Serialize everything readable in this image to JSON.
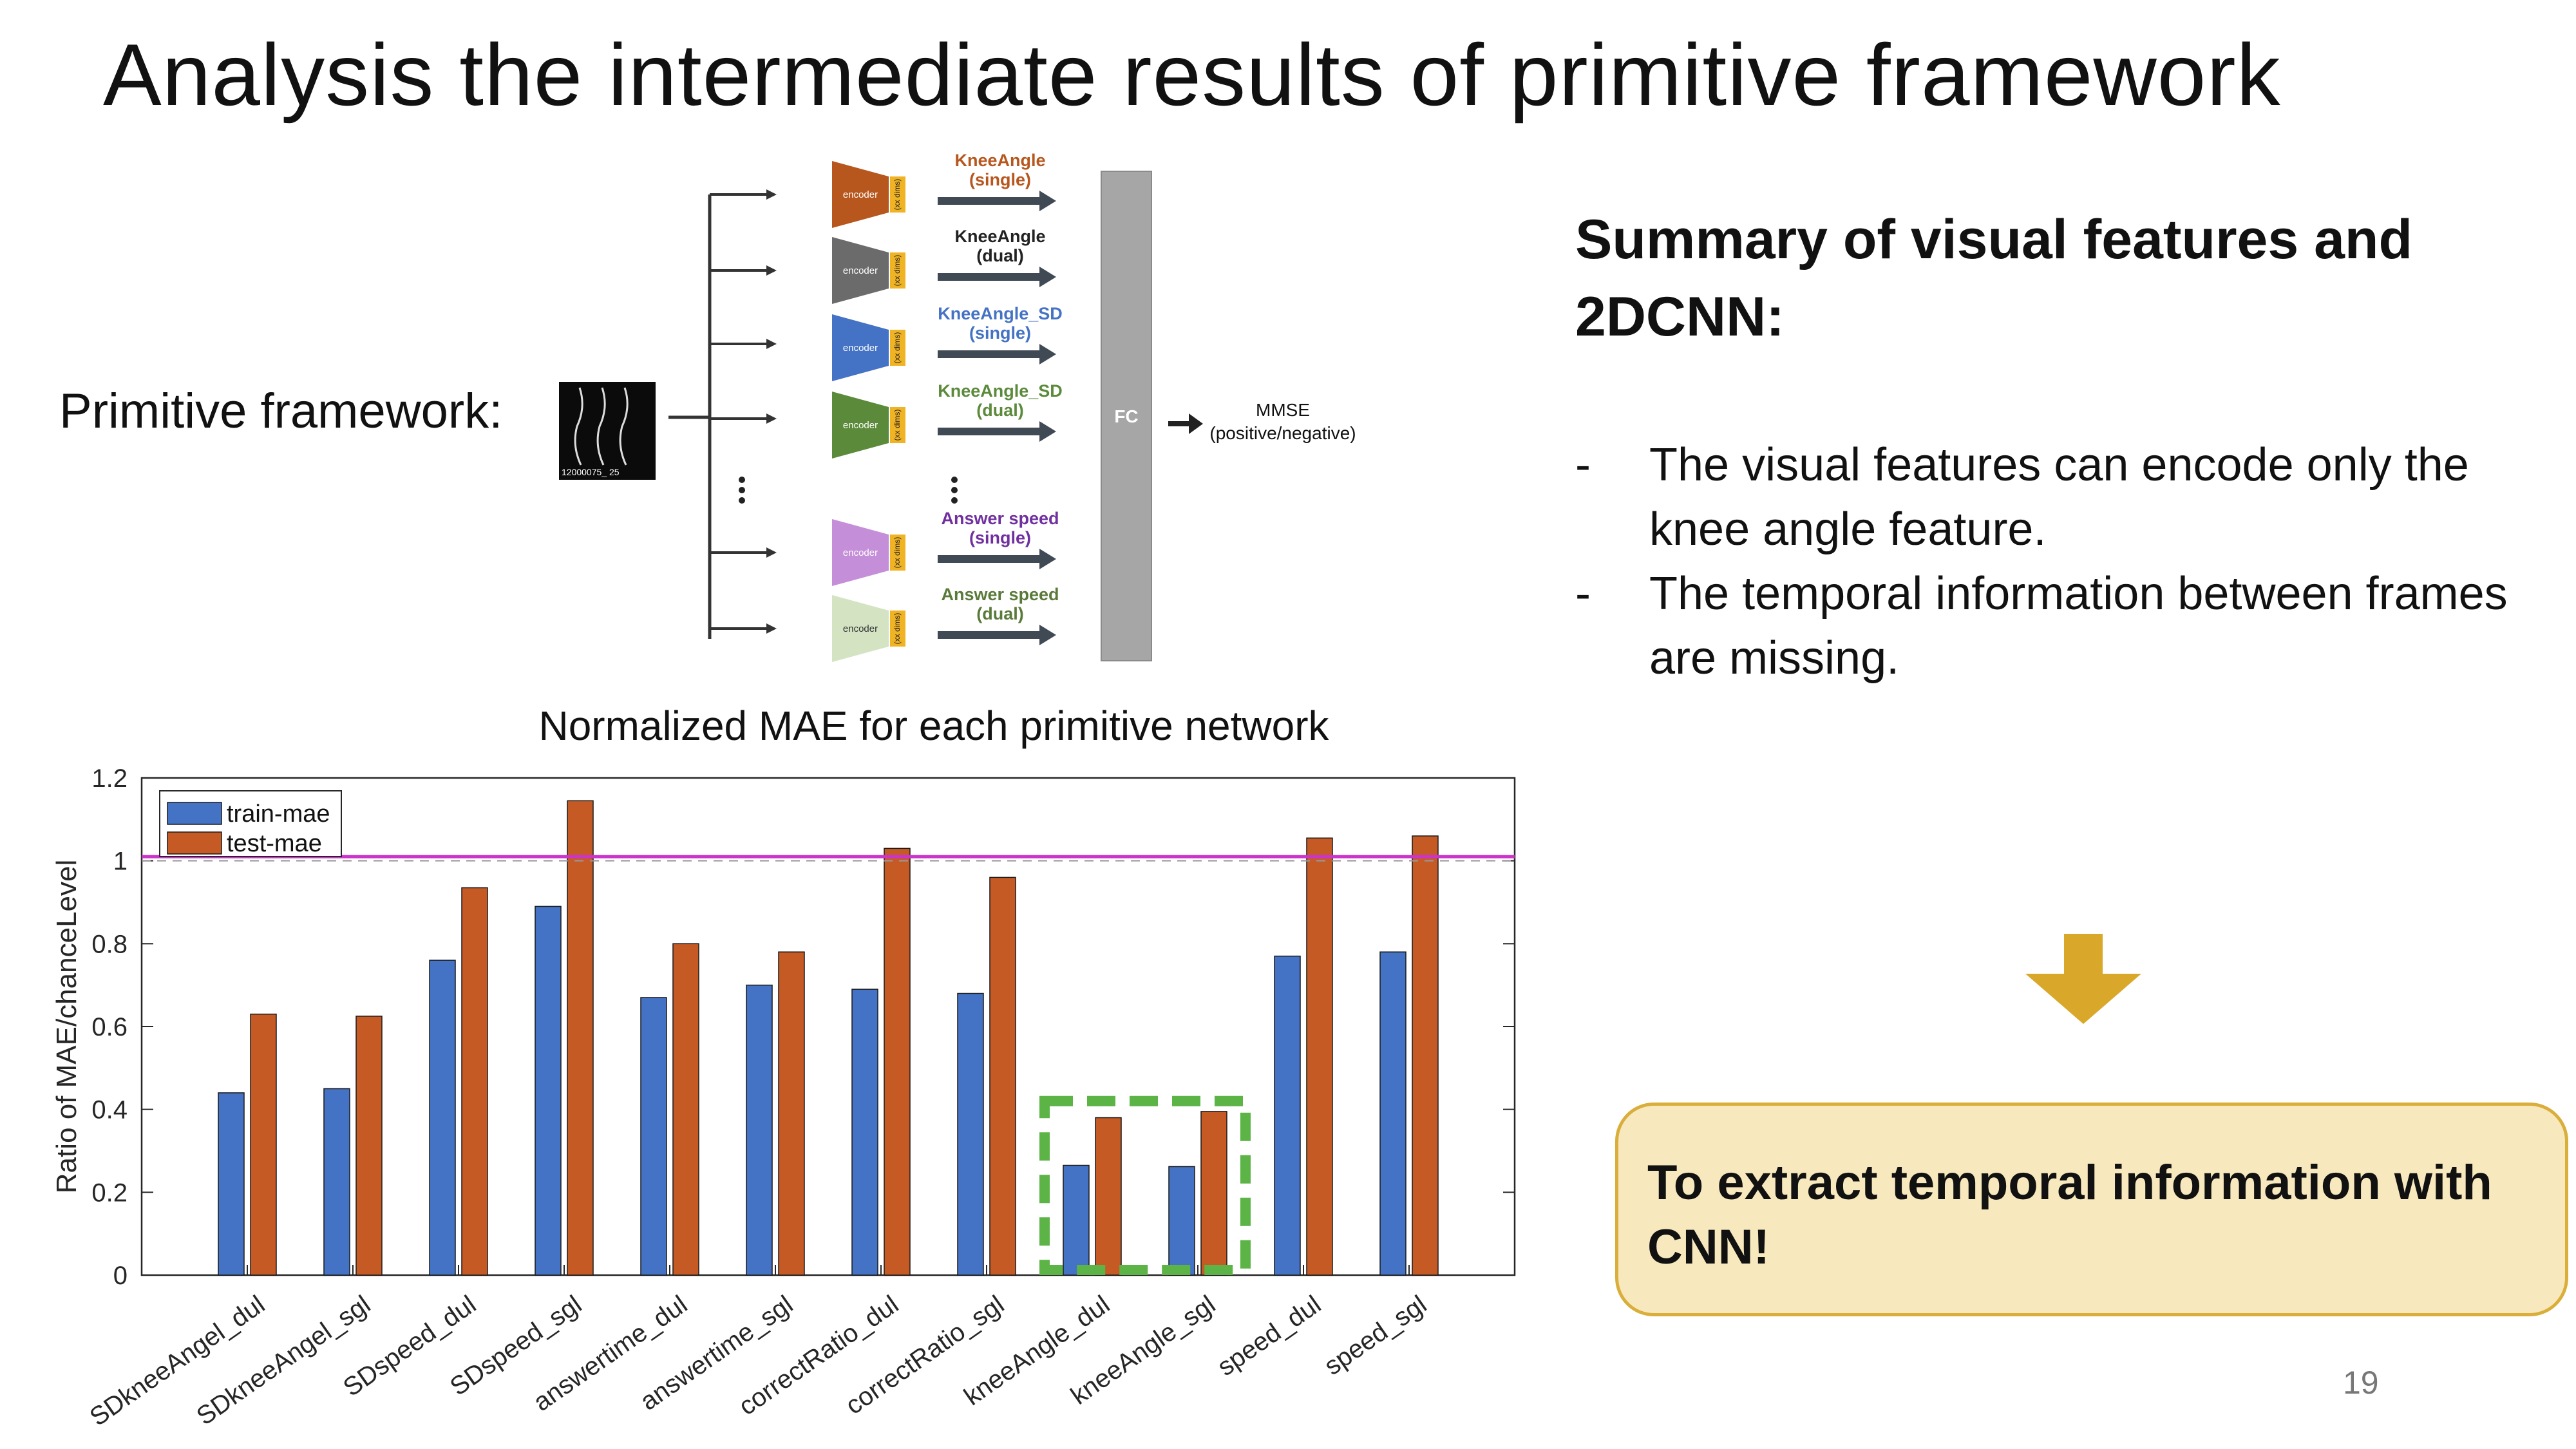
{
  "slide": {
    "title": "Analysis the intermediate results of primitive framework",
    "framework_label": "Primitive framework:",
    "page_number": "19"
  },
  "diagram": {
    "input_caption": "12000075_ 25",
    "encoder_label": "encoder",
    "dims_label": "(xx dims)",
    "branches": [
      {
        "line1": "KneeAngle",
        "line2": "(single)",
        "color": "#b7561d",
        "text_color": "#b7561d"
      },
      {
        "line1": "KneeAngle",
        "line2": "(dual)",
        "color": "#6b6b6b",
        "text_color": "#222222"
      },
      {
        "line1": "KneeAngle_SD",
        "line2": "(single)",
        "color": "#4472c4",
        "text_color": "#4472c4"
      },
      {
        "line1": "KneeAngle_SD",
        "line2": "(dual)",
        "color": "#5a8a3a",
        "text_color": "#5a8a3a"
      },
      {
        "line1": "Answer speed",
        "line2": "(single)",
        "color": "#c58ed8",
        "text_color": "#7030a0"
      },
      {
        "line1": "Answer speed",
        "line2": "(dual)",
        "color": "#d4e4c2",
        "text_color": "#5a7a3a"
      }
    ],
    "fc_label": "FC",
    "output_line1": "MMSE",
    "output_line2": "(positive/negative)",
    "colors": {
      "dims_box": "#f0b323",
      "fc_box": "#a6a6a6",
      "arrow": "#404a55"
    }
  },
  "summary": {
    "heading": "Summary of visual features and 2DCNN:",
    "bullets": [
      {
        "dash": "-",
        "lines": [
          "The visual features can encode only the",
          "knee angle feature."
        ]
      },
      {
        "dash": "-",
        "lines": [
          "The temporal information between frames",
          "are missing."
        ]
      }
    ],
    "callout": "To extract temporal information with CNN!",
    "colors": {
      "arrow": "#d9a82b",
      "callout_fill": "#f8e8bd",
      "callout_border": "#d9ae3a"
    }
  },
  "chart_data": {
    "type": "bar",
    "title": "Normalized MAE for each primitive network",
    "xlabel": "",
    "ylabel": "Ratio of MAE/chanceLevel",
    "ylim": [
      0,
      1.2
    ],
    "yticks": [
      "0",
      "0.2",
      "0.4",
      "0.6",
      "0.8",
      "1",
      "1.2"
    ],
    "categories": [
      "SDkneeAngel_dul",
      "SDkneeAngel_sgl",
      "SDspeed_dul",
      "SDspeed_sgl",
      "answertime_dul",
      "answertime_sgl",
      "correctRatio_dul",
      "correctRatio_sgl",
      "kneeAngle_dul",
      "kneeAngle_sgl",
      "speed_dul",
      "speed_sgl"
    ],
    "series": [
      {
        "name": "train-mae",
        "color": "#4472c4",
        "values": [
          0.44,
          0.45,
          0.76,
          0.89,
          0.67,
          0.7,
          0.69,
          0.68,
          0.265,
          0.262,
          0.77,
          0.78
        ]
      },
      {
        "name": "test-mae",
        "color": "#c55a24",
        "values": [
          0.63,
          0.625,
          0.935,
          1.145,
          0.8,
          0.78,
          1.03,
          0.96,
          0.38,
          0.395,
          1.055,
          1.06
        ]
      }
    ],
    "reference_lines": [
      {
        "value": 1.01,
        "style": "solid",
        "color": "#cc33cc"
      },
      {
        "value": 1.0,
        "style": "dashed",
        "color": "#999999"
      }
    ],
    "highlight": {
      "categories": [
        "kneeAngle_dul",
        "kneeAngle_sgl"
      ],
      "color": "#5cb346",
      "style": "dashed box"
    },
    "legend_position": "top-left",
    "grid": false
  }
}
